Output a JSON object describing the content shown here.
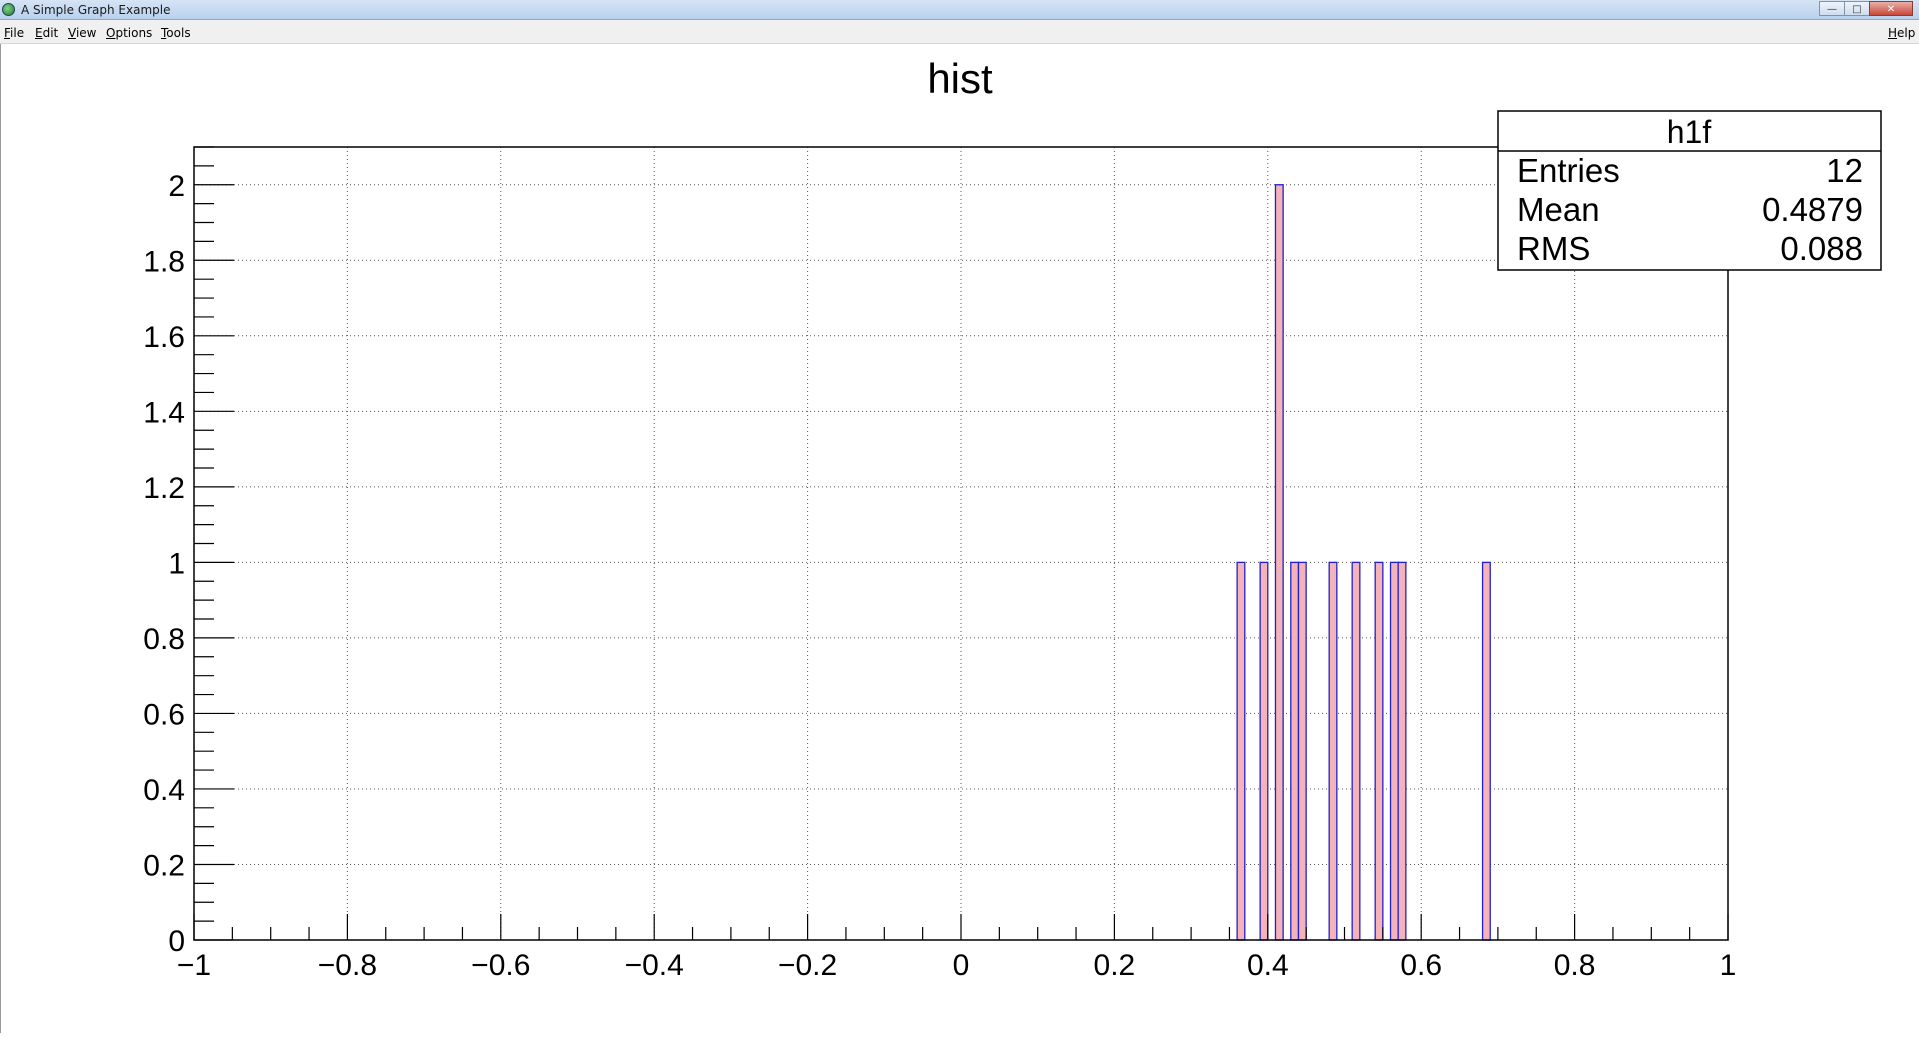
{
  "window": {
    "title": "A Simple Graph Example"
  },
  "menu": {
    "file": "File",
    "edit": "Edit",
    "view": "View",
    "options": "Options",
    "tools": "Tools",
    "help": "Help"
  },
  "chart_data": {
    "type": "bar",
    "title": "hist",
    "xlabel": "",
    "ylabel": "",
    "xlim": [
      -1,
      1
    ],
    "ylim": [
      0,
      2.1
    ],
    "grid": true,
    "bin_width": 0.01,
    "x_ticks": [
      "−1",
      "−0.8",
      "−0.6",
      "−0.4",
      "−0.2",
      "0",
      "0.2",
      "0.4",
      "0.6",
      "0.8",
      "1"
    ],
    "y_ticks": [
      "0",
      "0.2",
      "0.4",
      "0.6",
      "0.8",
      "1",
      "1.2",
      "1.4",
      "1.6",
      "1.8",
      "2"
    ],
    "bins": [
      {
        "x": 0.36,
        "value": 1
      },
      {
        "x": 0.39,
        "value": 1
      },
      {
        "x": 0.41,
        "value": 2
      },
      {
        "x": 0.43,
        "value": 1
      },
      {
        "x": 0.44,
        "value": 1
      },
      {
        "x": 0.48,
        "value": 1
      },
      {
        "x": 0.51,
        "value": 1
      },
      {
        "x": 0.54,
        "value": 1
      },
      {
        "x": 0.56,
        "value": 1
      },
      {
        "x": 0.57,
        "value": 1
      },
      {
        "x": 0.68,
        "value": 1
      }
    ],
    "fill_color": "#f4b3b8",
    "line_color": "#2222cc",
    "stats": {
      "name": "h1f",
      "rows": [
        {
          "label": "Entries",
          "value": "12"
        },
        {
          "label": "Mean",
          "value": "0.4879"
        },
        {
          "label": "RMS",
          "value": "0.088"
        }
      ]
    }
  }
}
